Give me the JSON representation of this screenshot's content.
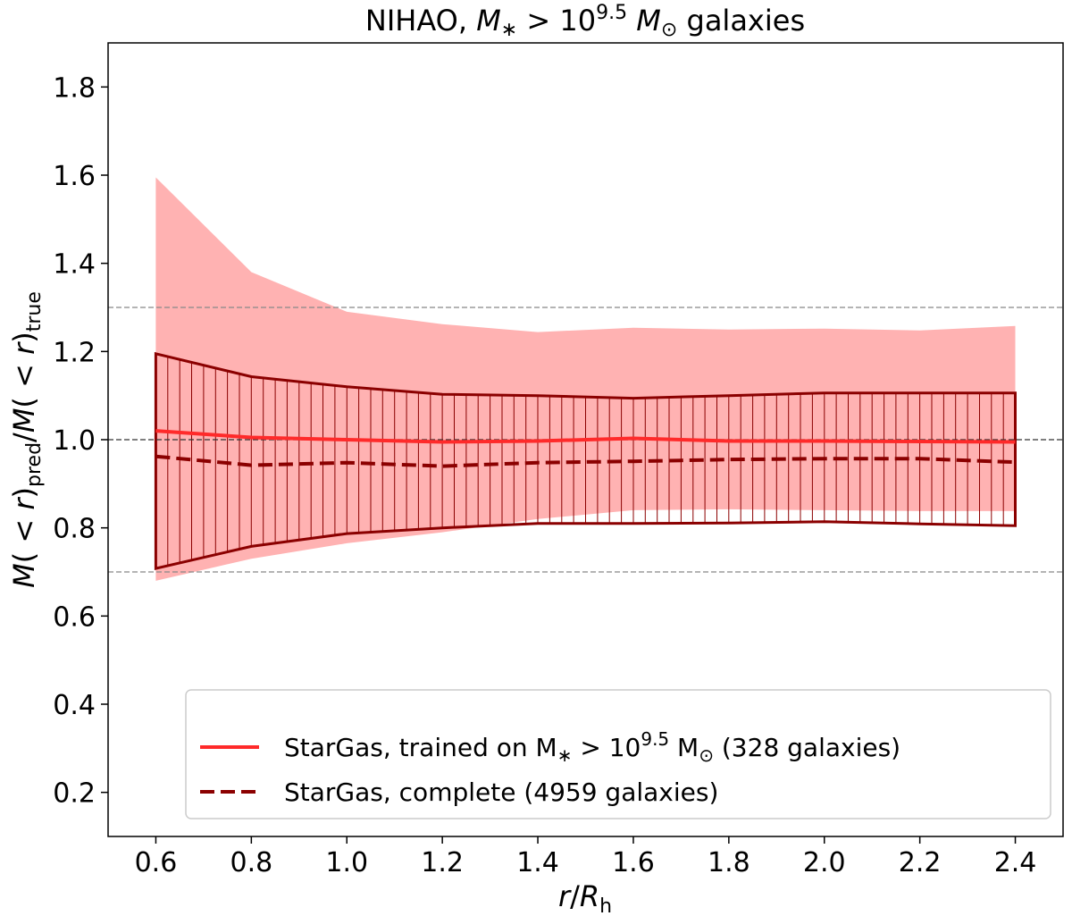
{
  "chart_data": {
    "type": "line",
    "title": {
      "prefix": "NIHAO, ",
      "m": "M",
      "sub": "∗",
      "mid": " > 10",
      "exp": "9.5",
      "unit": " M",
      "sun": "⊙",
      "suffix": " galaxies"
    },
    "xlabel": {
      "r": "r",
      "slash": "/",
      "R": "R",
      "sub": "h"
    },
    "ylabel": {
      "a": "M",
      "b": "( < ",
      "c": "r",
      "d": ")",
      "sub1": "pred",
      "e": "/",
      "f": "M",
      "g": "( < ",
      "h": "r",
      "i": ")",
      "sub2": "true"
    },
    "xlim": [
      0.5,
      2.5
    ],
    "ylim": [
      0.1,
      1.9
    ],
    "xticks": [
      0.6,
      0.8,
      1.0,
      1.2,
      1.4,
      1.6,
      1.8,
      2.0,
      2.2,
      2.4
    ],
    "yticks": [
      0.2,
      0.4,
      0.6,
      0.8,
      1.0,
      1.2,
      1.4,
      1.6,
      1.8
    ],
    "xtick_labels": [
      "0.6",
      "0.8",
      "1.0",
      "1.2",
      "1.4",
      "1.6",
      "1.8",
      "2.0",
      "2.2",
      "2.4"
    ],
    "ytick_labels": [
      "0.2",
      "0.4",
      "0.6",
      "0.8",
      "1.0",
      "1.2",
      "1.4",
      "1.6",
      "1.8"
    ],
    "reference_lines": [
      0.7,
      1.0,
      1.3
    ],
    "x": [
      0.6,
      0.8,
      1.0,
      1.2,
      1.4,
      1.6,
      1.8,
      2.0,
      2.2,
      2.4
    ],
    "series": [
      {
        "name": "StarGas, trained on M∗ > 10^9.5 M⊙ (328 galaxies)",
        "style": "solid",
        "color": "#ff2a2a",
        "band_color": "#ff7f7f",
        "values": [
          1.02,
          1.005,
          1.0,
          0.995,
          0.997,
          1.003,
          0.997,
          0.997,
          0.996,
          0.995
        ],
        "band_upper": [
          1.595,
          1.38,
          1.29,
          1.262,
          1.244,
          1.254,
          1.25,
          1.252,
          1.248,
          1.258
        ],
        "band_lower": [
          0.68,
          0.73,
          0.765,
          0.79,
          0.82,
          0.84,
          0.842,
          0.84,
          0.838,
          0.838
        ]
      },
      {
        "name": "StarGas, complete (4959 galaxies)",
        "style": "dashed",
        "color": "#8b0000",
        "values": [
          0.962,
          0.942,
          0.948,
          0.94,
          0.948,
          0.951,
          0.955,
          0.957,
          0.957,
          0.949
        ],
        "band_upper": [
          1.195,
          1.143,
          1.12,
          1.103,
          1.1,
          1.094,
          1.1,
          1.106,
          1.106,
          1.106
        ],
        "band_lower": [
          0.708,
          0.758,
          0.787,
          0.8,
          0.81,
          0.81,
          0.811,
          0.814,
          0.809,
          0.805
        ]
      }
    ],
    "legend": {
      "position": "lower-right",
      "entries": [
        {
          "style": "solid",
          "color": "#ff2a2a",
          "text_a": "StarGas, trained on M",
          "sub": "∗",
          "text_b": " > 10",
          "exp": "9.5",
          "text_c": " M",
          "sun": "⊙",
          "text_d": " (328 galaxies)"
        },
        {
          "style": "dashed",
          "color": "#8b0000",
          "text": "StarGas, complete (4959 galaxies)"
        }
      ]
    }
  }
}
